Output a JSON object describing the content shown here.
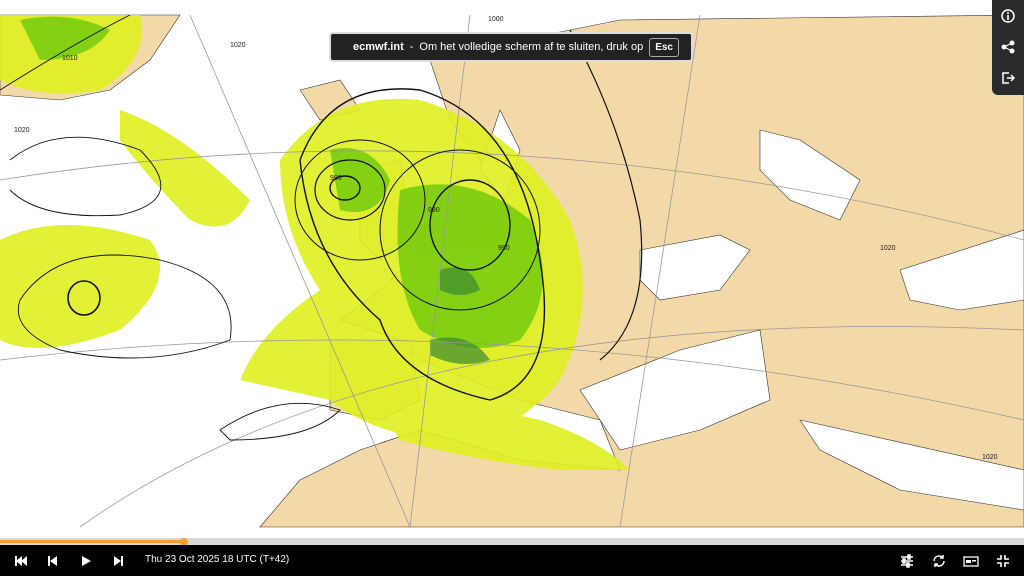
{
  "toast": {
    "site": "ecmwf.int",
    "separator": "-",
    "message": "Om het volledige scherm af te sluiten, druk op",
    "key": "Esc"
  },
  "map": {
    "contour_labels": [
      "1010",
      "1020",
      "1000",
      "990",
      "990",
      "990",
      "1020",
      "1020",
      "1020"
    ]
  },
  "player": {
    "time_label": "Thu 23 Oct 2025 18 UTC (T+42)"
  }
}
